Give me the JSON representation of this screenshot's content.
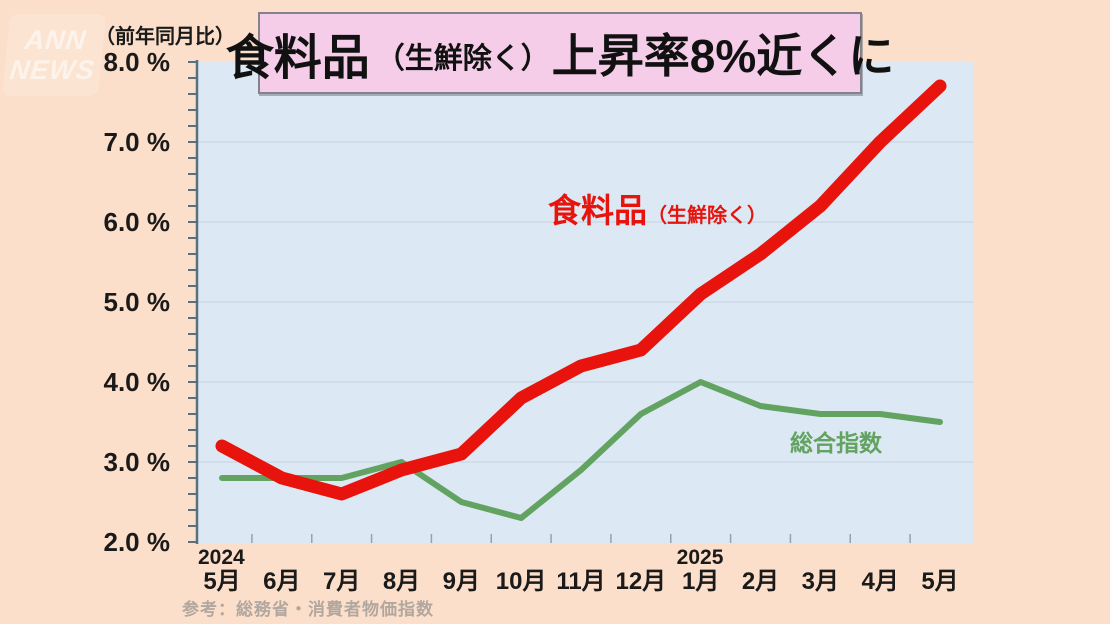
{
  "theme": {
    "page_bg": "#fcdfca",
    "plot_bg": "#dce8f3",
    "grid_color": "#ccd9e6",
    "axis_color": "#56707f",
    "title_box_bg": "#f5cde9",
    "title_box_border": "#83838d",
    "food_line_color": "#e8130c",
    "general_line_color": "#63a361"
  },
  "watermark": {
    "line1": "ANN",
    "line2": "NEWS"
  },
  "header": {
    "annotation": "（前年同月比）"
  },
  "title": {
    "main": "食料品",
    "paren": "（生鮮除く）",
    "rest": "上昇率8%近くに"
  },
  "labels": {
    "food_main": "食料品",
    "food_paren": "（生鮮除く）",
    "general": "総合指数"
  },
  "source": "参考：総務省・消費者物価指数",
  "chart_data": {
    "type": "line",
    "categories": [
      "5月",
      "6月",
      "7月",
      "8月",
      "9月",
      "10月",
      "11月",
      "12月",
      "1月",
      "2月",
      "3月",
      "4月",
      "5月"
    ],
    "year_labels": [
      {
        "text": "2024",
        "index": 0
      },
      {
        "text": "2025",
        "index": 8
      }
    ],
    "series": [
      {
        "name": "食料品（生鮮除く）",
        "color": "#e8130c",
        "values": [
          3.2,
          2.8,
          2.6,
          2.9,
          3.1,
          3.8,
          4.2,
          4.4,
          5.1,
          5.6,
          6.2,
          7.0,
          7.7
        ]
      },
      {
        "name": "総合指数",
        "color": "#63a361",
        "values": [
          2.8,
          2.8,
          2.8,
          3.0,
          2.5,
          2.3,
          2.9,
          3.6,
          4.0,
          3.7,
          3.6,
          3.6,
          3.5
        ]
      }
    ],
    "yticks": [
      "8.0 %",
      "7.0 %",
      "6.0 %",
      "5.0 %",
      "4.0 %",
      "3.0 %",
      "2.0 %"
    ],
    "ytick_values": [
      8.0,
      7.0,
      6.0,
      5.0,
      4.0,
      3.0,
      2.0
    ],
    "ylim": [
      2.0,
      8.0
    ],
    "ytick_minor_step": 0.2,
    "grid": "horizontal",
    "legend_position": "inline-annotations"
  }
}
